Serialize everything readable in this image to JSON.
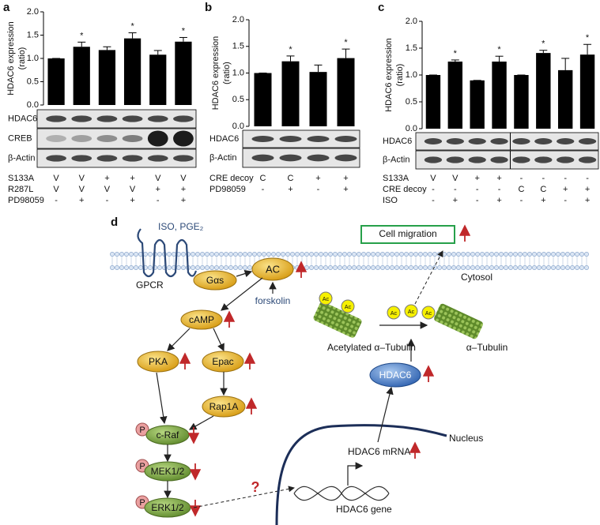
{
  "chart_data": [
    {
      "type": "bar",
      "panel_label": "a",
      "y_label": [
        "HDAC6 expression",
        "(ratio)"
      ],
      "color": "#000000",
      "values": [
        1.0,
        1.25,
        1.18,
        1.43,
        1.08,
        1.36
      ],
      "errors": [
        0,
        0.1,
        0.07,
        0.12,
        0.09,
        0.09
      ],
      "significance": [
        null,
        "*",
        null,
        "*",
        null,
        "*"
      ],
      "ylim": [
        0,
        2
      ],
      "yticks": [
        {
          "value": 0,
          "label": "0.0"
        },
        {
          "value": 0.5,
          "label": "0.5"
        },
        {
          "value": 1,
          "label": "1.0"
        },
        {
          "value": 1.5,
          "label": "1.5"
        },
        {
          "value": 2,
          "label": "2.0"
        }
      ],
      "blots": [
        "HDAC6",
        "CREB",
        "β-Actin"
      ],
      "conditions": [
        {
          "name": "S133A",
          "values": [
            "V",
            "V",
            "+",
            "+",
            "V",
            "V"
          ]
        },
        {
          "name": "R287L",
          "values": [
            "V",
            "V",
            "V",
            "V",
            "+",
            "+"
          ]
        },
        {
          "name": "PD98059",
          "values": [
            "-",
            "+",
            "-",
            "+",
            "-",
            "+"
          ]
        }
      ]
    },
    {
      "type": "bar",
      "panel_label": "b",
      "y_label": [
        "HDAC6 expression",
        "(ratio)"
      ],
      "color": "#000000",
      "values": [
        1.0,
        1.22,
        1.02,
        1.28
      ],
      "errors": [
        0,
        0.1,
        0.13,
        0.17
      ],
      "significance": [
        null,
        "*",
        null,
        "*"
      ],
      "ylim": [
        0,
        2
      ],
      "yticks": [
        {
          "value": 0,
          "label": "0.0"
        },
        {
          "value": 0.5,
          "label": "0.5"
        },
        {
          "value": 1,
          "label": "1.0"
        },
        {
          "value": 1.5,
          "label": "1.5"
        },
        {
          "value": 2,
          "label": "2.0"
        }
      ],
      "blots": [
        "HDAC6",
        "β-Actin"
      ],
      "conditions": [
        {
          "name": "CRE decoy",
          "values": [
            "C",
            "C",
            "+",
            "+"
          ]
        },
        {
          "name": "PD98059",
          "values": [
            "-",
            "+",
            "-",
            "+"
          ]
        }
      ]
    },
    {
      "type": "bar",
      "panel_label": "c",
      "y_label": [
        "HDAC6 expression",
        "(ratio)"
      ],
      "color": "#000000",
      "values": [
        1.0,
        1.25,
        0.9,
        1.25,
        1.0,
        1.41,
        1.09,
        1.38
      ],
      "errors": [
        0,
        0.03,
        0,
        0.1,
        0,
        0.05,
        0.22,
        0.19
      ],
      "significance": [
        null,
        "*",
        null,
        "*",
        null,
        "*",
        null,
        "*"
      ],
      "ylim": [
        0,
        2
      ],
      "yticks": [
        {
          "value": 0,
          "label": "0.0"
        },
        {
          "value": 0.5,
          "label": "0.5"
        },
        {
          "value": 1,
          "label": "1.0"
        },
        {
          "value": 1.5,
          "label": "1.5"
        },
        {
          "value": 2,
          "label": "2.0"
        }
      ],
      "blots": [
        "HDAC6",
        "β-Actin"
      ],
      "conditions": [
        {
          "name": "S133A",
          "values": [
            "V",
            "V",
            "+",
            "+",
            "-",
            "-",
            "-",
            "-"
          ]
        },
        {
          "name": "CRE decoy",
          "values": [
            "-",
            "-",
            "-",
            "-",
            "C",
            "C",
            "+",
            "+"
          ]
        },
        {
          "name": "ISO",
          "values": [
            "-",
            "+",
            "-",
            "+",
            "-",
            "+",
            "-",
            "+"
          ]
        }
      ]
    }
  ],
  "diagram": {
    "panel_label": "d",
    "nodes": [
      "ISO, PGE₂",
      "GPCR",
      "Gαs",
      "AC",
      "forskolin",
      "cAMP",
      "PKA",
      "Epac",
      "Rap1A",
      "c-Raf",
      "MEK1/2",
      "ERK1/2",
      "P",
      "?",
      "Cell migration",
      "Cytosol",
      "Acetylated α–Tubulin",
      "α–Tubulin",
      "HDAC6",
      "Nucleus",
      "HDAC6 mRNA",
      "HDAC6 gene",
      "Ac"
    ]
  }
}
